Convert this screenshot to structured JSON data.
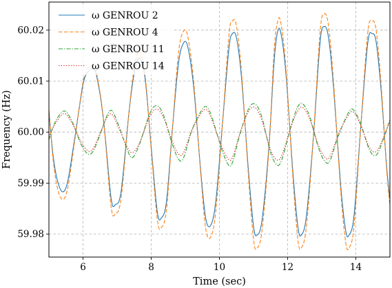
{
  "chart_data": {
    "type": "line",
    "xlabel": "Time (sec)",
    "ylabel": "Frequency (Hz)",
    "xlim": [
      5,
      15
    ],
    "ylim": [
      59.9755,
      60.0255
    ],
    "xticks": [
      6,
      8,
      10,
      12,
      14
    ],
    "xtick_labels": [
      "6",
      "8",
      "10",
      "12",
      "14"
    ],
    "yticks": [
      59.98,
      59.99,
      60.0,
      60.01,
      60.02
    ],
    "ytick_labels": [
      "59.98",
      "59.99",
      "60.00",
      "60.01",
      "60.02"
    ],
    "grid": true,
    "legend_position": "top-left",
    "series": [
      {
        "name": "ω GENROU 2",
        "color": "#1f77b4",
        "dash": "solid",
        "points": [
          [
            5.0,
            60.0042
          ],
          [
            5.12,
            59.9955
          ],
          [
            5.25,
            59.9905
          ],
          [
            5.4,
            59.9883
          ],
          [
            5.55,
            59.9903
          ],
          [
            5.75,
            59.9985
          ],
          [
            6.0,
            60.0093
          ],
          [
            6.15,
            60.0118
          ],
          [
            6.28,
            60.0124
          ],
          [
            6.4,
            60.011
          ],
          [
            6.6,
            60.0025
          ],
          [
            6.82,
            59.9872
          ],
          [
            6.95,
            59.9858
          ],
          [
            7.12,
            59.9885
          ],
          [
            7.35,
            60.004
          ],
          [
            7.5,
            60.0115
          ],
          [
            7.65,
            60.0145
          ],
          [
            7.82,
            60.0105
          ],
          [
            8.0,
            59.997
          ],
          [
            8.18,
            59.9843
          ],
          [
            8.3,
            59.9832
          ],
          [
            8.45,
            59.9865
          ],
          [
            8.62,
            60.0005
          ],
          [
            8.8,
            60.0135
          ],
          [
            8.95,
            60.0175
          ],
          [
            9.08,
            60.0165
          ],
          [
            9.25,
            60.0085
          ],
          [
            9.45,
            59.9925
          ],
          [
            9.6,
            59.983
          ],
          [
            9.75,
            59.9818
          ],
          [
            9.9,
            59.9868
          ],
          [
            10.1,
            60.0025
          ],
          [
            10.28,
            60.0165
          ],
          [
            10.38,
            60.0193
          ],
          [
            10.5,
            60.0185
          ],
          [
            10.65,
            60.0105
          ],
          [
            10.85,
            59.9925
          ],
          [
            11.0,
            59.9815
          ],
          [
            11.1,
            59.9798
          ],
          [
            11.25,
            59.9828
          ],
          [
            11.45,
            59.997
          ],
          [
            11.6,
            60.0135
          ],
          [
            11.7,
            60.0195
          ],
          [
            11.8,
            60.0195
          ],
          [
            11.95,
            60.0115
          ],
          [
            12.15,
            59.9925
          ],
          [
            12.3,
            59.9815
          ],
          [
            12.4,
            59.9798
          ],
          [
            12.55,
            59.9835
          ],
          [
            12.75,
            59.9985
          ],
          [
            12.95,
            60.0175
          ],
          [
            13.07,
            60.0207
          ],
          [
            13.2,
            60.0185
          ],
          [
            13.35,
            60.0085
          ],
          [
            13.55,
            59.99
          ],
          [
            13.7,
            59.9808
          ],
          [
            13.8,
            59.9798
          ],
          [
            13.95,
            59.9838
          ],
          [
            14.15,
            60.0015
          ],
          [
            14.35,
            60.0175
          ],
          [
            14.48,
            60.0193
          ],
          [
            14.6,
            60.0175
          ],
          [
            14.75,
            60.0075
          ],
          [
            14.9,
            59.9935
          ],
          [
            15.0,
            59.9868
          ]
        ]
      },
      {
        "name": "ω GENROU 4",
        "color": "#ff7f0e",
        "dash": "dashed",
        "points": [
          [
            5.0,
            60.0045
          ],
          [
            5.12,
            59.9948
          ],
          [
            5.25,
            59.989
          ],
          [
            5.4,
            59.9868
          ],
          [
            5.55,
            59.989
          ],
          [
            5.75,
            59.998
          ],
          [
            6.0,
            60.0098
          ],
          [
            6.15,
            60.0125
          ],
          [
            6.28,
            60.013
          ],
          [
            6.4,
            60.0115
          ],
          [
            6.6,
            60.0025
          ],
          [
            6.82,
            59.9856
          ],
          [
            6.95,
            59.984
          ],
          [
            7.12,
            59.9872
          ],
          [
            7.35,
            60.004
          ],
          [
            7.5,
            60.0125
          ],
          [
            7.65,
            60.0158
          ],
          [
            7.82,
            60.0112
          ],
          [
            8.0,
            59.9965
          ],
          [
            8.18,
            59.9828
          ],
          [
            8.3,
            59.9813
          ],
          [
            8.45,
            59.985
          ],
          [
            8.62,
            60.0005
          ],
          [
            8.8,
            60.0155
          ],
          [
            8.95,
            60.0198
          ],
          [
            9.08,
            60.0185
          ],
          [
            9.25,
            60.0095
          ],
          [
            9.45,
            59.992
          ],
          [
            9.6,
            59.981
          ],
          [
            9.75,
            59.9795
          ],
          [
            9.9,
            59.985
          ],
          [
            10.1,
            60.0025
          ],
          [
            10.28,
            60.019
          ],
          [
            10.38,
            60.0218
          ],
          [
            10.5,
            60.0208
          ],
          [
            10.65,
            60.0115
          ],
          [
            10.85,
            59.9915
          ],
          [
            11.0,
            59.979
          ],
          [
            11.1,
            59.9772
          ],
          [
            11.25,
            59.9808
          ],
          [
            11.45,
            59.9965
          ],
          [
            11.6,
            60.0155
          ],
          [
            11.7,
            60.0215
          ],
          [
            11.8,
            60.0215
          ],
          [
            11.95,
            60.0125
          ],
          [
            12.15,
            59.9915
          ],
          [
            12.3,
            59.979
          ],
          [
            12.4,
            59.9773
          ],
          [
            12.55,
            59.9815
          ],
          [
            12.75,
            59.9985
          ],
          [
            12.95,
            60.0195
          ],
          [
            13.07,
            60.0232
          ],
          [
            13.2,
            60.0208
          ],
          [
            13.35,
            60.0095
          ],
          [
            13.55,
            59.989
          ],
          [
            13.7,
            59.9785
          ],
          [
            13.8,
            59.9773
          ],
          [
            13.95,
            59.9818
          ],
          [
            14.15,
            60.0015
          ],
          [
            14.35,
            60.0195
          ],
          [
            14.48,
            60.0218
          ],
          [
            14.6,
            60.0198
          ],
          [
            14.75,
            60.0085
          ],
          [
            14.9,
            59.993
          ],
          [
            15.0,
            59.9855
          ]
        ]
      },
      {
        "name": "ω GENROU 11",
        "color": "#2ca02c",
        "dash": "dashdot",
        "points": [
          [
            5.0,
            59.9985
          ],
          [
            5.15,
            60.0015
          ],
          [
            5.35,
            60.0037
          ],
          [
            5.5,
            60.004
          ],
          [
            5.7,
            60.0018
          ],
          [
            5.95,
            59.9975
          ],
          [
            6.15,
            59.9957
          ],
          [
            6.3,
            59.9963
          ],
          [
            6.5,
            59.9995
          ],
          [
            6.7,
            60.0032
          ],
          [
            6.85,
            60.0042
          ],
          [
            7.05,
            60.0012
          ],
          [
            7.3,
            59.9965
          ],
          [
            7.45,
            59.995
          ],
          [
            7.65,
            59.9975
          ],
          [
            7.95,
            60.0035
          ],
          [
            8.15,
            60.0052
          ],
          [
            8.35,
            60.0035
          ],
          [
            8.6,
            59.998
          ],
          [
            8.8,
            59.9947
          ],
          [
            8.95,
            59.995
          ],
          [
            9.2,
            60.0005
          ],
          [
            9.5,
            60.0045
          ],
          [
            9.65,
            60.0048
          ],
          [
            9.8,
            60.0025
          ],
          [
            10.05,
            59.997
          ],
          [
            10.25,
            59.9937
          ],
          [
            10.38,
            59.994
          ],
          [
            10.6,
            59.9995
          ],
          [
            10.85,
            60.0045
          ],
          [
            11.05,
            60.0055
          ],
          [
            11.25,
            60.0028
          ],
          [
            11.5,
            59.996
          ],
          [
            11.7,
            59.9935
          ],
          [
            11.85,
            59.995
          ],
          [
            12.1,
            60.0012
          ],
          [
            12.3,
            60.005
          ],
          [
            12.45,
            60.0055
          ],
          [
            12.65,
            60.003
          ],
          [
            12.9,
            59.997
          ],
          [
            13.1,
            59.9942
          ],
          [
            13.25,
            59.9945
          ],
          [
            13.5,
            59.9995
          ],
          [
            13.8,
            60.004
          ],
          [
            13.95,
            60.0042
          ],
          [
            14.15,
            60.0015
          ],
          [
            14.4,
            59.9965
          ],
          [
            14.6,
            59.9955
          ],
          [
            14.8,
            59.9985
          ],
          [
            15.0,
            60.0025
          ]
        ]
      },
      {
        "name": "ω GENROU 14",
        "color": "#d62728",
        "dash": "dotted",
        "points": [
          [
            5.0,
            59.999
          ],
          [
            5.15,
            60.0012
          ],
          [
            5.35,
            60.0032
          ],
          [
            5.5,
            60.0035
          ],
          [
            5.7,
            60.0015
          ],
          [
            5.95,
            59.998
          ],
          [
            6.15,
            59.9963
          ],
          [
            6.3,
            59.9968
          ],
          [
            6.5,
            59.9998
          ],
          [
            6.7,
            60.0028
          ],
          [
            6.85,
            60.0035
          ],
          [
            7.05,
            60.0008
          ],
          [
            7.3,
            59.997
          ],
          [
            7.45,
            59.996
          ],
          [
            7.65,
            59.9978
          ],
          [
            7.95,
            60.003
          ],
          [
            8.15,
            60.0045
          ],
          [
            8.35,
            60.003
          ],
          [
            8.6,
            59.9985
          ],
          [
            8.8,
            59.9957
          ],
          [
            8.95,
            59.996
          ],
          [
            9.2,
            60.0005
          ],
          [
            9.5,
            60.004
          ],
          [
            9.65,
            60.0042
          ],
          [
            9.8,
            60.002
          ],
          [
            10.05,
            59.9975
          ],
          [
            10.25,
            59.9948
          ],
          [
            10.38,
            59.995
          ],
          [
            10.6,
            59.9998
          ],
          [
            10.85,
            60.004
          ],
          [
            11.05,
            60.0048
          ],
          [
            11.25,
            60.0022
          ],
          [
            11.5,
            59.9965
          ],
          [
            11.7,
            59.9945
          ],
          [
            11.85,
            59.9958
          ],
          [
            12.1,
            60.001
          ],
          [
            12.3,
            60.0042
          ],
          [
            12.45,
            60.0048
          ],
          [
            12.65,
            60.0025
          ],
          [
            12.9,
            59.9975
          ],
          [
            13.1,
            59.995
          ],
          [
            13.25,
            59.9953
          ],
          [
            13.5,
            59.9998
          ],
          [
            13.8,
            60.0035
          ],
          [
            13.95,
            60.0038
          ],
          [
            14.15,
            60.0012
          ],
          [
            14.4,
            59.997
          ],
          [
            14.6,
            59.9962
          ],
          [
            14.8,
            59.9988
          ],
          [
            15.0,
            60.0022
          ]
        ]
      }
    ]
  }
}
